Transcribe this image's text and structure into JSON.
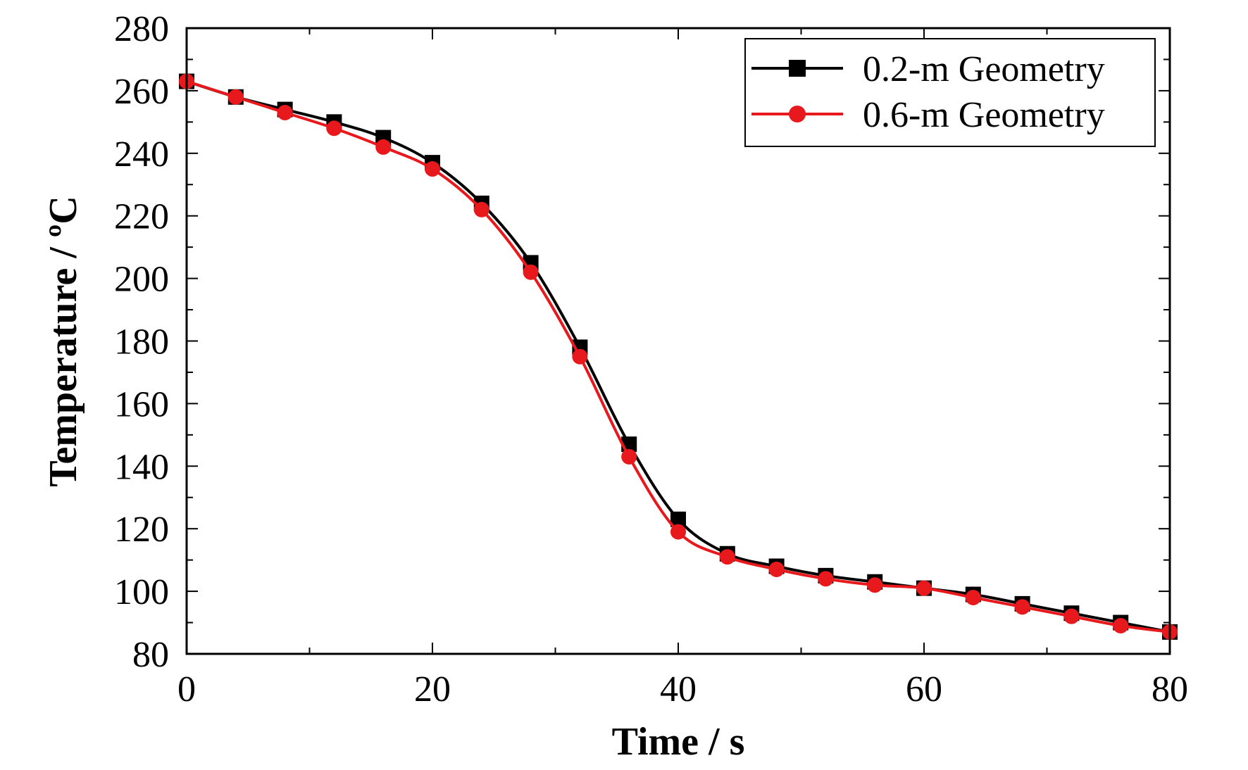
{
  "chart_data": {
    "type": "line",
    "title": "",
    "xlabel": "Time / s",
    "ylabel": "Temperature / ºC",
    "xlim": [
      0,
      80
    ],
    "ylim": [
      80,
      280
    ],
    "xticks": [
      0,
      20,
      40,
      60,
      80
    ],
    "yticks": [
      80,
      100,
      120,
      140,
      160,
      180,
      200,
      220,
      240,
      260,
      280
    ],
    "x_minor_step": 10,
    "y_minor_step": 10,
    "grid": false,
    "legend_position": "top-right",
    "x": [
      0,
      4,
      8,
      12,
      16,
      20,
      24,
      28,
      32,
      36,
      40,
      44,
      48,
      52,
      56,
      60,
      64,
      68,
      72,
      76,
      80
    ],
    "series": [
      {
        "name": "0.2-m Geometry",
        "color": "#000000",
        "marker": "square",
        "values": [
          263,
          258,
          254,
          250,
          245,
          237,
          224,
          205,
          178,
          147,
          123,
          112,
          108,
          105,
          103,
          101,
          99,
          96,
          93,
          90,
          87
        ]
      },
      {
        "name": "0.6-m Geometry",
        "color": "#e8191c",
        "marker": "circle",
        "values": [
          263,
          258,
          253,
          248,
          242,
          235,
          222,
          202,
          175,
          143,
          119,
          111,
          107,
          104,
          102,
          101,
          98,
          95,
          92,
          89,
          87
        ]
      }
    ]
  }
}
